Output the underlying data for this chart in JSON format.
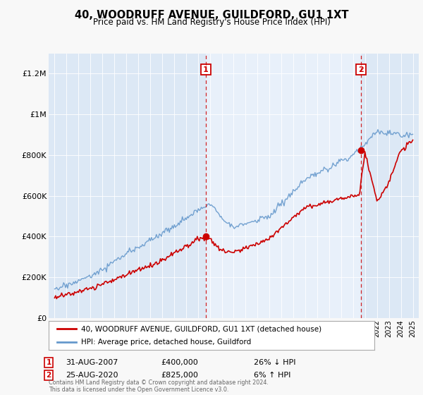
{
  "title": "40, WOODRUFF AVENUE, GUILDFORD, GU1 1XT",
  "subtitle": "Price paid vs. HM Land Registry's House Price Index (HPI)",
  "background_color": "#f8f8f8",
  "plot_bg_color": "#dce8f5",
  "highlight_bg": "#e8f0fa",
  "ylim": [
    0,
    1300000
  ],
  "yticks": [
    0,
    200000,
    400000,
    600000,
    800000,
    1000000,
    1200000
  ],
  "ytick_labels": [
    "£0",
    "£200K",
    "£400K",
    "£600K",
    "£800K",
    "£1M",
    "£1.2M"
  ],
  "sale1_year": 2007.67,
  "sale1_price": 400000,
  "sale1_label": "1",
  "sale1_date": "31-AUG-2007",
  "sale1_pct": "26% ↓ HPI",
  "sale2_year": 2020.65,
  "sale2_price": 825000,
  "sale2_label": "2",
  "sale2_date": "25-AUG-2020",
  "sale2_pct": "6% ↑ HPI",
  "legend_line1": "40, WOODRUFF AVENUE, GUILDFORD, GU1 1XT (detached house)",
  "legend_line2": "HPI: Average price, detached house, Guildford",
  "footer": "Contains HM Land Registry data © Crown copyright and database right 2024.\nThis data is licensed under the Open Government Licence v3.0.",
  "red_color": "#cc0000",
  "blue_color": "#6699cc",
  "xlim_left": 1994.5,
  "xlim_right": 2025.5
}
